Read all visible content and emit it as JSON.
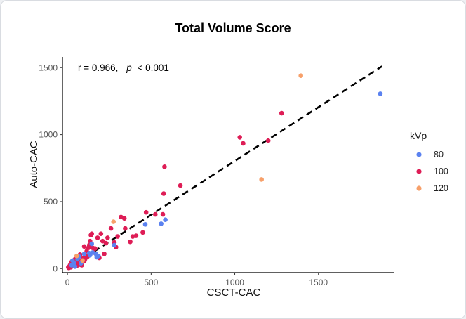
{
  "chart_data": {
    "type": "scatter",
    "title": "Total Volume Score",
    "xlabel": "CSCT-CAC",
    "ylabel": "Auto-CAC",
    "xlim": [
      -30,
      1950
    ],
    "ylim": [
      -30,
      1580
    ],
    "xticks": [
      0,
      500,
      1000,
      1500
    ],
    "yticks": [
      0,
      500,
      1000,
      1500
    ],
    "grid": false,
    "annotation": {
      "r_text": "r = 0.966,",
      "p_symbol": "p",
      "p_text": "< 0.001"
    },
    "reference_line": {
      "style": "dashed",
      "from": [
        0,
        0
      ],
      "to": [
        1880,
        1510
      ]
    },
    "legend": {
      "title": "kVp",
      "placement": "right"
    },
    "series": [
      {
        "name": "80",
        "color": "#5b82f0",
        "points": [
          [
            1870,
            1305
          ],
          [
            585,
            365
          ],
          [
            560,
            335
          ],
          [
            465,
            330
          ],
          [
            185,
            95
          ],
          [
            170,
            110
          ],
          [
            150,
            120
          ],
          [
            135,
            100
          ],
          [
            130,
            115
          ],
          [
            145,
            185
          ],
          [
            175,
            85
          ],
          [
            280,
            175
          ],
          [
            60,
            70
          ],
          [
            40,
            40
          ],
          [
            70,
            90
          ],
          [
            25,
            25
          ],
          [
            100,
            110
          ],
          [
            45,
            15
          ],
          [
            80,
            40
          ],
          [
            30,
            60
          ]
        ]
      },
      {
        "name": "100",
        "color": "#de1d56",
        "points": [
          [
            1280,
            1160
          ],
          [
            1200,
            955
          ],
          [
            1050,
            935
          ],
          [
            1030,
            980
          ],
          [
            675,
            620
          ],
          [
            580,
            760
          ],
          [
            575,
            560
          ],
          [
            570,
            405
          ],
          [
            525,
            405
          ],
          [
            470,
            420
          ],
          [
            450,
            270
          ],
          [
            410,
            245
          ],
          [
            390,
            240
          ],
          [
            375,
            200
          ],
          [
            340,
            375
          ],
          [
            320,
            385
          ],
          [
            300,
            240
          ],
          [
            290,
            160
          ],
          [
            280,
            195
          ],
          [
            240,
            230
          ],
          [
            230,
            190
          ],
          [
            220,
            110
          ],
          [
            200,
            260
          ],
          [
            180,
            230
          ],
          [
            165,
            150
          ],
          [
            155,
            120
          ],
          [
            145,
            260
          ],
          [
            140,
            250
          ],
          [
            135,
            205
          ],
          [
            125,
            155
          ],
          [
            120,
            90
          ],
          [
            115,
            130
          ],
          [
            110,
            95
          ],
          [
            100,
            55
          ],
          [
            95,
            80
          ],
          [
            85,
            25
          ],
          [
            75,
            30
          ],
          [
            70,
            55
          ],
          [
            60,
            40
          ],
          [
            55,
            20
          ],
          [
            50,
            65
          ],
          [
            45,
            70
          ],
          [
            40,
            35
          ],
          [
            35,
            20
          ],
          [
            30,
            30
          ],
          [
            25,
            50
          ],
          [
            20,
            10
          ],
          [
            15,
            25
          ],
          [
            10,
            15
          ],
          [
            8,
            5
          ],
          [
            5,
            10
          ],
          [
            100,
            165
          ],
          [
            130,
            175
          ],
          [
            105,
            70
          ],
          [
            75,
            105
          ],
          [
            150,
            155
          ],
          [
            210,
            205
          ],
          [
            345,
            300
          ],
          [
            190,
            80
          ],
          [
            260,
            300
          ]
        ]
      },
      {
        "name": "120",
        "color": "#f7a06a",
        "points": [
          [
            1395,
            1440
          ],
          [
            1160,
            665
          ],
          [
            275,
            350
          ],
          [
            90,
            60
          ],
          [
            55,
            95
          ]
        ]
      }
    ]
  }
}
